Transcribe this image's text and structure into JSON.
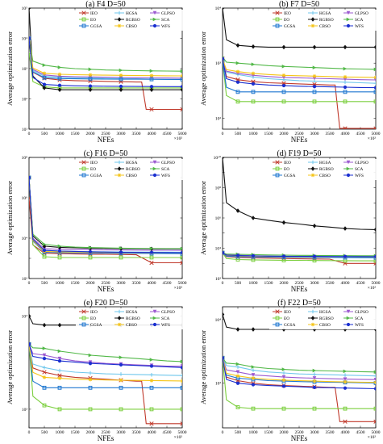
{
  "figure": {
    "ylabel": "Average optimization error",
    "xlabel": "NFEs",
    "x_multiplier": "×10²",
    "x_ticks": [
      "0",
      "500",
      "1000",
      "1500",
      "2000",
      "2500",
      "3000",
      "3500",
      "4000",
      "4500",
      "5000"
    ]
  },
  "legend": [
    {
      "name": "IEO",
      "color": "#c0392b",
      "marker": "x"
    },
    {
      "name": "HGSA",
      "color": "#6fc7ec",
      "marker": "+"
    },
    {
      "name": "GLPSO",
      "color": "#9b59d0",
      "marker": "tri-down"
    },
    {
      "name": "EO",
      "color": "#7ccf3f",
      "marker": "square"
    },
    {
      "name": "RGBSO",
      "color": "#111111",
      "marker": "diamond"
    },
    {
      "name": "SCA",
      "color": "#52b848",
      "marker": "tri-right"
    },
    {
      "name": "GGSA",
      "color": "#1f77d0",
      "marker": "square"
    },
    {
      "name": "CBSO",
      "color": "#f5c518",
      "marker": "star"
    },
    {
      "name": "WFS",
      "color": "#1a2fd0",
      "marker": "circle"
    }
  ],
  "chart_data": [
    {
      "type": "line",
      "title": "(a) F4 D=50",
      "xlabel": "NFEs",
      "ylabel": "Average optimization error",
      "x": [
        0,
        500,
        1000,
        1500,
        2000,
        2500,
        3000,
        3500,
        4000,
        4500,
        5000
      ],
      "xlim": [
        0,
        5000
      ],
      "log_y": true,
      "ylim_exp": [
        1,
        5
      ],
      "y_ticks": [
        "10¹",
        "10²",
        "10³",
        "10⁴",
        "10⁵"
      ],
      "series": [
        {
          "name": "IEO",
          "values": [
            10000,
            480,
            420,
            400,
            390,
            380,
            370,
            360,
            45,
            45,
            45
          ]
        },
        {
          "name": "HGSA",
          "values": [
            10000,
            560,
            520,
            500,
            490,
            480,
            470,
            460,
            450,
            440,
            440
          ]
        },
        {
          "name": "GLPSO",
          "values": [
            10000,
            620,
            560,
            540,
            530,
            520,
            510,
            500,
            495,
            490,
            485
          ]
        },
        {
          "name": "EO",
          "values": [
            3500,
            250,
            230,
            230,
            230,
            230,
            230,
            230,
            230,
            230,
            230
          ]
        },
        {
          "name": "RGBSO",
          "values": [
            100000,
            230,
            200,
            200,
            200,
            200,
            200,
            200,
            200,
            200,
            200
          ]
        },
        {
          "name": "SCA",
          "values": [
            10000,
            1300,
            1100,
            1000,
            950,
            900,
            880,
            860,
            840,
            830,
            820
          ]
        },
        {
          "name": "GGSA",
          "values": [
            10000,
            500,
            470,
            460,
            455,
            450,
            448,
            446,
            444,
            442,
            440
          ]
        },
        {
          "name": "CBSO",
          "values": [
            10000,
            700,
            650,
            630,
            620,
            610,
            600,
            590,
            585,
            580,
            575
          ]
        },
        {
          "name": "WFS",
          "values": [
            10000,
            300,
            280,
            270,
            265,
            262,
            260,
            258,
            256,
            255,
            254
          ]
        }
      ]
    },
    {
      "type": "line",
      "title": "(b) F7 D=50",
      "xlabel": "NFEs",
      "ylabel": "Average optimization error",
      "x": [
        0,
        500,
        1000,
        1500,
        2000,
        2500,
        3000,
        3500,
        4000,
        4500,
        5000
      ],
      "xlim": [
        0,
        5000
      ],
      "log_y": true,
      "ylim_exp": [
        1.8,
        4
      ],
      "y_ticks": [
        "10²",
        "10³",
        "10⁴"
      ],
      "series": [
        {
          "name": "IEO",
          "values": [
            1200,
            500,
            460,
            440,
            430,
            420,
            410,
            400,
            65,
            65,
            65
          ]
        },
        {
          "name": "HGSA",
          "values": [
            1200,
            620,
            560,
            520,
            500,
            480,
            470,
            460,
            450,
            440,
            430
          ]
        },
        {
          "name": "GLPSO",
          "values": [
            1200,
            650,
            600,
            570,
            550,
            540,
            530,
            520,
            510,
            500,
            495
          ]
        },
        {
          "name": "EO",
          "values": [
            1100,
            200,
            200,
            200,
            200,
            200,
            200,
            200,
            200,
            200,
            200
          ]
        },
        {
          "name": "RGBSO",
          "values": [
            10000,
            2100,
            2000,
            1950,
            1950,
            1950,
            1950,
            1950,
            1950,
            1950,
            1950
          ]
        },
        {
          "name": "SCA",
          "values": [
            1300,
            1000,
            950,
            900,
            870,
            850,
            830,
            810,
            790,
            780,
            770
          ]
        },
        {
          "name": "GGSA",
          "values": [
            1100,
            300,
            300,
            300,
            300,
            300,
            300,
            300,
            300,
            300,
            300
          ]
        },
        {
          "name": "CBSO",
          "values": [
            1200,
            700,
            650,
            620,
            600,
            590,
            580,
            570,
            560,
            555,
            550
          ]
        },
        {
          "name": "WFS",
          "values": [
            1200,
            450,
            420,
            400,
            390,
            380,
            375,
            370,
            365,
            360,
            358
          ]
        }
      ]
    },
    {
      "type": "line",
      "title": "(c) F16 D=50",
      "xlabel": "NFEs",
      "ylabel": "Average optimization error",
      "x": [
        0,
        500,
        1000,
        1500,
        2000,
        2500,
        3000,
        3500,
        4000,
        4500,
        5000
      ],
      "xlim": [
        0,
        5000
      ],
      "log_y": true,
      "ylim_exp": [
        2,
        8
      ],
      "y_ticks": [
        "10²",
        "10⁴",
        "10⁶",
        "10⁸"
      ],
      "series": [
        {
          "name": "IEO",
          "values": [
            1000000,
            1800,
            1700,
            1650,
            1600,
            1580,
            1550,
            1500,
            600,
            600,
            600
          ]
        },
        {
          "name": "HGSA",
          "values": [
            10000000,
            2500,
            2300,
            2200,
            2150,
            2100,
            2080,
            2060,
            2040,
            2030,
            2020
          ]
        },
        {
          "name": "GLPSO",
          "values": [
            10000000,
            3000,
            2800,
            2700,
            2650,
            2600,
            2580,
            2560,
            2540,
            2520,
            2500
          ]
        },
        {
          "name": "EO",
          "values": [
            10000000,
            1200,
            1100,
            1100,
            1100,
            1100,
            1100,
            1100,
            1100,
            1100,
            1100
          ]
        },
        {
          "name": "RGBSO",
          "values": [
            10000000,
            4000,
            3500,
            3300,
            3200,
            3100,
            3050,
            3000,
            2950,
            2900,
            2900
          ]
        },
        {
          "name": "SCA",
          "values": [
            10000000,
            5000,
            4000,
            3600,
            3400,
            3300,
            3200,
            3100,
            3050,
            3000,
            3000
          ]
        },
        {
          "name": "GGSA",
          "values": [
            10000000,
            2000,
            1900,
            1850,
            1820,
            1800,
            1780,
            1760,
            1740,
            1720,
            1700
          ]
        },
        {
          "name": "CBSO",
          "values": [
            10000000,
            2200,
            2100,
            2050,
            2000,
            1980,
            1960,
            1940,
            1920,
            1900,
            1890
          ]
        },
        {
          "name": "WFS",
          "values": [
            10000000,
            2500,
            2300,
            2200,
            2100,
            2050,
            2000,
            1980,
            1960,
            1940,
            1920
          ]
        }
      ]
    },
    {
      "type": "line",
      "title": "(d) F19 D=50",
      "xlabel": "NFEs",
      "ylabel": "Average optimization error",
      "x": [
        0,
        500,
        1000,
        1500,
        2000,
        2500,
        3000,
        3500,
        4000,
        4500,
        5000
      ],
      "xlim": [
        0,
        5000
      ],
      "log_y": true,
      "ylim_exp": [
        2,
        10
      ],
      "y_ticks": [
        "10²",
        "10⁴",
        "10⁶",
        "10⁸",
        "10¹⁰"
      ],
      "series": [
        {
          "name": "IEO",
          "values": [
            5000,
            2500,
            2300,
            2200,
            2100,
            2000,
            1950,
            1900,
            1000,
            1000,
            1000
          ]
        },
        {
          "name": "HGSA",
          "values": [
            5000,
            3000,
            2800,
            2700,
            2600,
            2550,
            2500,
            2450,
            2400,
            2350,
            2300
          ]
        },
        {
          "name": "GLPSO",
          "values": [
            5000,
            3500,
            3200,
            3000,
            2900,
            2800,
            2750,
            2700,
            2650,
            2600,
            2600
          ]
        },
        {
          "name": "EO",
          "values": [
            5000,
            1800,
            1700,
            1650,
            1600,
            1580,
            1550,
            1530,
            1500,
            1480,
            1470
          ]
        },
        {
          "name": "RGBSO",
          "values": [
            10000000000,
            3000000,
            1000000,
            700000,
            500000,
            400000,
            300000,
            250000,
            200000,
            180000,
            170000
          ]
        },
        {
          "name": "SCA",
          "values": [
            5000,
            4000,
            3800,
            3600,
            3500,
            3400,
            3350,
            3300,
            3250,
            3200,
            3200
          ]
        },
        {
          "name": "GGSA",
          "values": [
            5000,
            2800,
            2700,
            2600,
            2550,
            2500,
            2480,
            2460,
            2440,
            2420,
            2400
          ]
        },
        {
          "name": "CBSO",
          "values": [
            5000,
            3200,
            3000,
            2900,
            2850,
            2800,
            2780,
            2760,
            2740,
            2720,
            2700
          ]
        },
        {
          "name": "WFS",
          "values": [
            5000,
            3300,
            3100,
            3000,
            2950,
            2900,
            2880,
            2860,
            2840,
            2820,
            2800
          ]
        }
      ]
    },
    {
      "type": "line",
      "title": "(e) F20 D=50",
      "xlabel": "NFEs",
      "ylabel": "Average optimization error",
      "x": [
        0,
        500,
        1000,
        1500,
        2000,
        2500,
        3000,
        3500,
        4000,
        4500,
        5000
      ],
      "xlim": [
        0,
        5000
      ],
      "log_y": true,
      "ylim_exp": [
        2.8,
        4.1
      ],
      "y_ticks": [
        "10³",
        "10⁴"
      ],
      "series": [
        {
          "name": "IEO",
          "values": [
            5000,
            2500,
            2300,
            2200,
            2150,
            2100,
            2050,
            2000,
            700,
            700,
            700
          ]
        },
        {
          "name": "HGSA",
          "values": [
            5000,
            2800,
            2600,
            2500,
            2450,
            2400,
            2380,
            2360,
            2340,
            2320,
            2300
          ]
        },
        {
          "name": "GLPSO",
          "values": [
            5000,
            3800,
            3500,
            3300,
            3200,
            3100,
            3050,
            3000,
            2950,
            2900,
            2900
          ]
        },
        {
          "name": "EO",
          "values": [
            5000,
            1100,
            1000,
            1000,
            1000,
            1000,
            1000,
            1000,
            1000,
            1000,
            1000
          ]
        },
        {
          "name": "RGBSO",
          "values": [
            10000,
            8000,
            8000,
            8000,
            8000,
            8000,
            8000,
            8000,
            8000,
            8000,
            8000
          ]
        },
        {
          "name": "SCA",
          "values": [
            5000,
            4500,
            4200,
            4000,
            3800,
            3700,
            3600,
            3500,
            3400,
            3300,
            3250
          ]
        },
        {
          "name": "GGSA",
          "values": [
            5000,
            1700,
            1700,
            1700,
            1700,
            1700,
            1700,
            1700,
            1700,
            1700,
            1700
          ]
        },
        {
          "name": "CBSO",
          "values": [
            5000,
            2200,
            2150,
            2100,
            2080,
            2060,
            2050,
            2040,
            2030,
            2020,
            2010
          ]
        },
        {
          "name": "WFS",
          "values": [
            5000,
            3500,
            3300,
            3200,
            3100,
            3050,
            3000,
            2950,
            2900,
            2850,
            2800
          ]
        }
      ]
    },
    {
      "type": "line",
      "title": "(f) F22 D=50",
      "xlabel": "NFEs",
      "ylabel": "Average optimization error",
      "x": [
        0,
        500,
        1000,
        1500,
        2000,
        2500,
        3000,
        3500,
        4000,
        4500,
        5000
      ],
      "xlim": [
        0,
        5000
      ],
      "log_y": true,
      "ylim_exp": [
        2.3,
        4.2
      ],
      "y_ticks": [
        "10³",
        "10⁴"
      ],
      "series": [
        {
          "name": "IEO",
          "values": [
            2500,
            1100,
            1000,
            950,
            920,
            900,
            880,
            860,
            250,
            250,
            250
          ]
        },
        {
          "name": "HGSA",
          "values": [
            2500,
            1800,
            1600,
            1500,
            1450,
            1400,
            1380,
            1360,
            1340,
            1320,
            1300
          ]
        },
        {
          "name": "GLPSO",
          "values": [
            2500,
            1500,
            1350,
            1300,
            1250,
            1220,
            1200,
            1180,
            1160,
            1150,
            1140
          ]
        },
        {
          "name": "EO",
          "values": [
            2500,
            420,
            400,
            400,
            400,
            400,
            400,
            400,
            400,
            400,
            400
          ]
        },
        {
          "name": "RGBSO",
          "values": [
            12000,
            7000,
            7000,
            7000,
            7000,
            7000,
            7000,
            7000,
            7000,
            7000,
            7000
          ]
        },
        {
          "name": "SCA",
          "values": [
            2500,
            2000,
            1800,
            1700,
            1650,
            1600,
            1580,
            1560,
            1540,
            1520,
            1500
          ]
        },
        {
          "name": "GGSA",
          "values": [
            2500,
            1200,
            1150,
            1100,
            1080,
            1060,
            1050,
            1040,
            1030,
            1020,
            1010
          ]
        },
        {
          "name": "CBSO",
          "values": [
            2500,
            1300,
            1200,
            1150,
            1120,
            1100,
            1080,
            1060,
            1050,
            1040,
            1030
          ]
        },
        {
          "name": "WFS",
          "values": [
            2500,
            1000,
            950,
            920,
            900,
            880,
            860,
            850,
            840,
            830,
            820
          ]
        }
      ]
    }
  ]
}
